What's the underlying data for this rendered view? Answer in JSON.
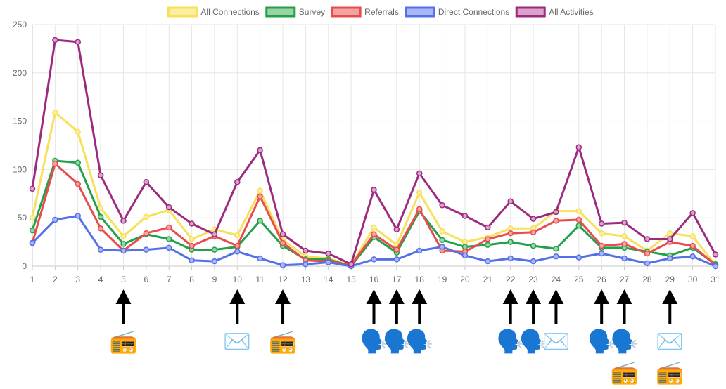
{
  "chart_data": {
    "type": "line",
    "title": "",
    "xlabel": "",
    "ylabel": "",
    "x": [
      1,
      2,
      3,
      4,
      5,
      6,
      7,
      8,
      9,
      10,
      11,
      12,
      13,
      14,
      15,
      16,
      17,
      18,
      19,
      20,
      21,
      22,
      23,
      24,
      25,
      26,
      27,
      28,
      29,
      30,
      31
    ],
    "ylim": [
      0,
      250
    ],
    "yticks": [
      0,
      50,
      100,
      150,
      200,
      250
    ],
    "grid": true,
    "legend_position": "top",
    "series": [
      {
        "name": "All Connections",
        "color": "#f7e15a",
        "fill": "#fbefa3",
        "values": [
          50,
          159,
          139,
          60,
          31,
          51,
          58,
          28,
          38,
          32,
          78,
          27,
          10,
          8,
          1,
          40,
          22,
          76,
          36,
          25,
          30,
          39,
          39,
          57,
          57,
          34,
          31,
          16,
          34,
          31,
          1
        ]
      },
      {
        "name": "Survey",
        "color": "#22a04a",
        "fill": "#9ad4a5",
        "values": [
          37,
          109,
          107,
          51,
          23,
          33,
          28,
          17,
          17,
          20,
          47,
          21,
          7,
          7,
          0,
          30,
          14,
          57,
          27,
          20,
          22,
          25,
          21,
          18,
          42,
          19,
          19,
          15,
          11,
          19,
          2
        ]
      },
      {
        "name": "Referrals",
        "color": "#e84c4c",
        "fill": "#f4a3a3",
        "values": [
          24,
          106,
          85,
          39,
          16,
          34,
          40,
          21,
          31,
          21,
          72,
          24,
          6,
          5,
          1,
          33,
          17,
          59,
          16,
          15,
          28,
          34,
          35,
          47,
          48,
          21,
          23,
          13,
          25,
          21,
          1
        ]
      },
      {
        "name": "Direct Connections",
        "color": "#5470e8",
        "fill": "#a9b7f4",
        "values": [
          24,
          48,
          52,
          17,
          16,
          17,
          19,
          6,
          5,
          15,
          8,
          1,
          2,
          4,
          0,
          7,
          7,
          16,
          20,
          11,
          5,
          8,
          5,
          10,
          9,
          13,
          8,
          3,
          8,
          10,
          0
        ]
      },
      {
        "name": "All Activities",
        "color": "#9c2a7e",
        "fill": "#d9a3cc",
        "values": [
          80,
          234,
          232,
          94,
          47,
          87,
          61,
          44,
          33,
          87,
          120,
          33,
          16,
          13,
          2,
          79,
          38,
          96,
          63,
          52,
          40,
          67,
          49,
          56,
          123,
          44,
          45,
          28,
          28,
          55,
          12
        ]
      }
    ],
    "annotations": [
      {
        "day": 5,
        "icons": [
          "radio-icon"
        ]
      },
      {
        "day": 10,
        "icons": [
          "envelope-icon"
        ]
      },
      {
        "day": 12,
        "icons": [
          "radio-icon"
        ]
      },
      {
        "day": 16,
        "icons": [
          "speaking-head-icon"
        ]
      },
      {
        "day": 17,
        "icons": [
          "speaking-head-icon"
        ]
      },
      {
        "day": 18,
        "icons": [
          "speaking-head-icon"
        ]
      },
      {
        "day": 22,
        "icons": [
          "speaking-head-icon"
        ]
      },
      {
        "day": 23,
        "icons": [
          "speaking-head-icon"
        ]
      },
      {
        "day": 24,
        "icons": [
          "envelope-icon"
        ]
      },
      {
        "day": 26,
        "icons": [
          "speaking-head-icon"
        ]
      },
      {
        "day": 27,
        "icons": [
          "speaking-head-icon",
          "radio-icon"
        ]
      },
      {
        "day": 29,
        "icons": [
          "envelope-icon",
          "radio-icon"
        ]
      }
    ],
    "icon_glyphs": {
      "radio-icon": "📻",
      "envelope-icon": "✉️",
      "speaking-head-icon": "🗣️"
    }
  }
}
